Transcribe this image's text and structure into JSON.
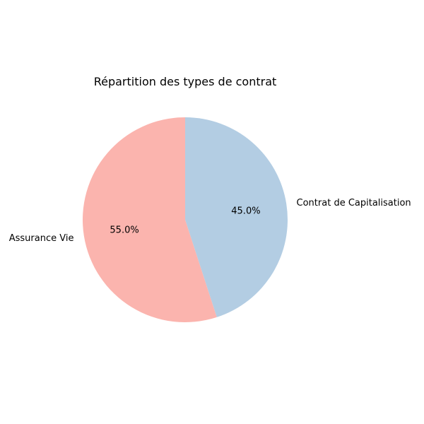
{
  "chart_data": {
    "type": "pie",
    "title": "Répartition des types de contrat",
    "slices": [
      {
        "label": "Contrat de Capitalisation",
        "value": 45.0,
        "percent_label": "45.0%",
        "color": "#b3cde3"
      },
      {
        "label": "Assurance Vie",
        "value": 55.0,
        "percent_label": "55.0%",
        "color": "#fbb4ae"
      }
    ],
    "start_angle": "top",
    "direction": "clockwise",
    "legend": false
  }
}
